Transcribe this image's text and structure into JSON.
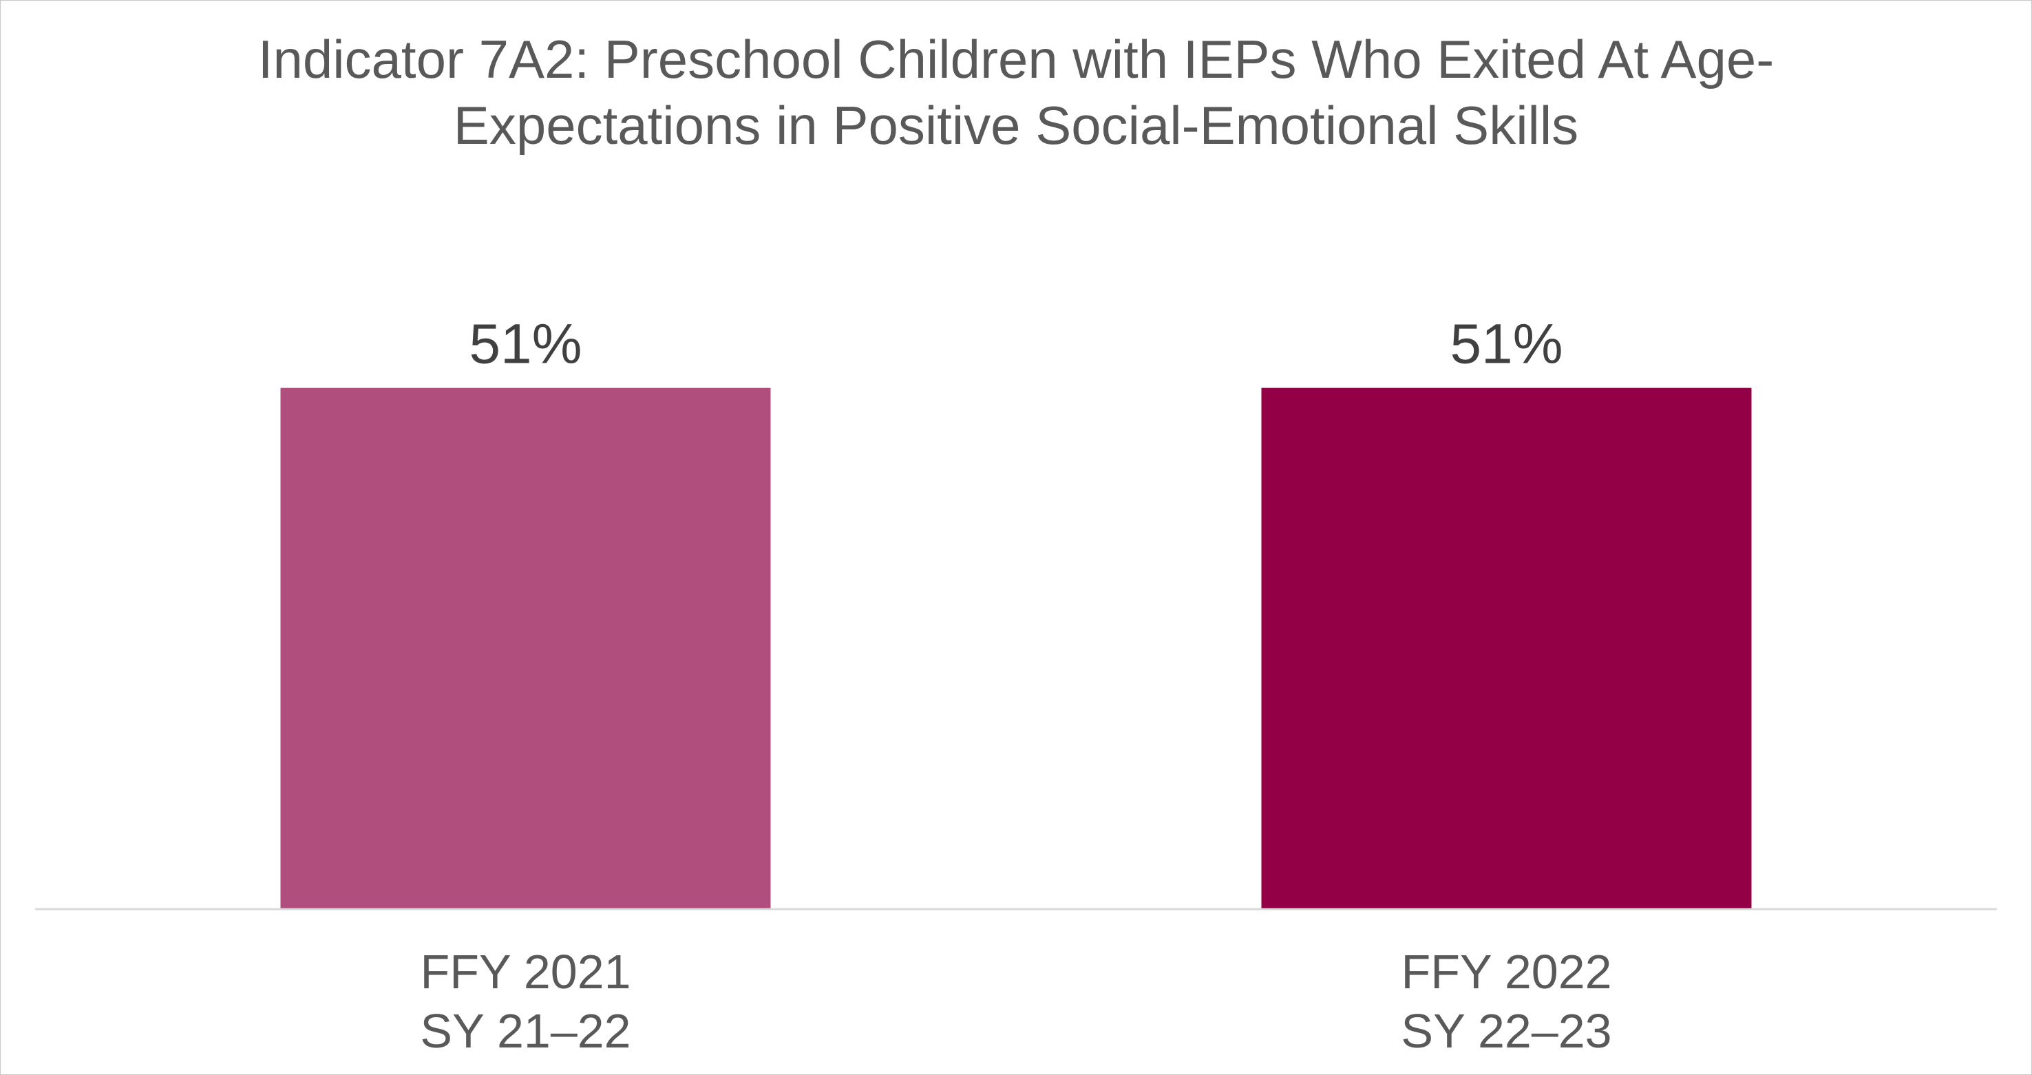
{
  "chart_data": {
    "type": "bar",
    "title_lines": [
      "Indicator 7A2: Preschool Children with IEPs Who Exited At Age-",
      "Expectations in Positive Social-Emotional Skills"
    ],
    "categories": [
      [
        "FFY 2021",
        "SY 21–22"
      ],
      [
        "FFY 2022",
        "SY 22–23"
      ]
    ],
    "values": [
      51,
      51
    ],
    "data_labels": [
      "51%",
      "51%"
    ],
    "bar_colors": [
      "#B04F7D",
      "#930046"
    ],
    "axis_color": "#D9D9D9",
    "ylim": [
      0,
      100
    ],
    "xlabel": "",
    "ylabel": "",
    "grid": false,
    "legend": "none"
  }
}
